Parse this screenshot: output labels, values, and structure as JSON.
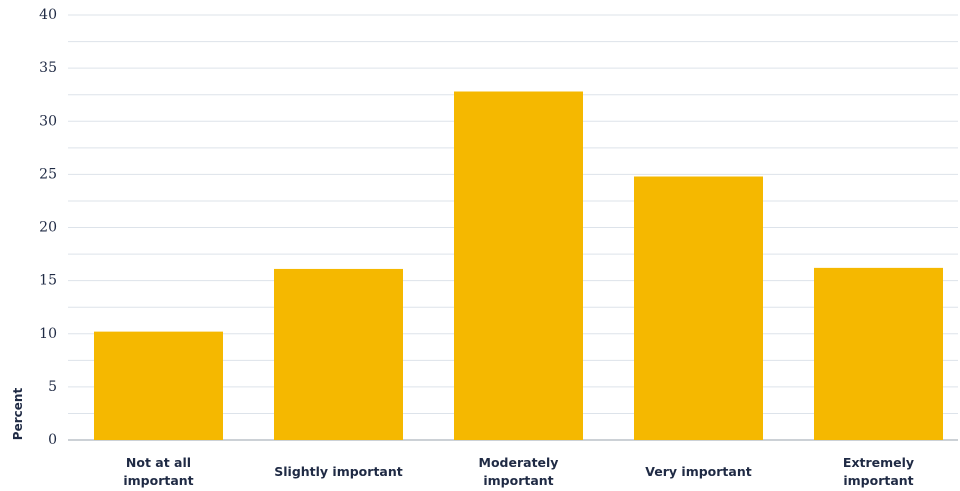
{
  "chart_data": {
    "type": "bar",
    "y_label": "Percent",
    "categories": [
      [
        "Not at all",
        "important"
      ],
      [
        "Slightly important"
      ],
      [
        "Moderately",
        "important"
      ],
      [
        "Very important"
      ],
      [
        "Extremely",
        "important"
      ]
    ],
    "values": [
      10.2,
      16.1,
      32.8,
      24.8,
      16.2
    ],
    "color": "#f5b800",
    "ylim": [
      0,
      40
    ],
    "yticks": [
      0,
      5,
      10,
      15,
      20,
      25,
      30,
      35,
      40
    ],
    "minor_yticks": [
      2.5,
      7.5,
      12.5,
      17.5,
      22.5,
      27.5,
      32.5,
      37.5
    ],
    "grid": true
  }
}
